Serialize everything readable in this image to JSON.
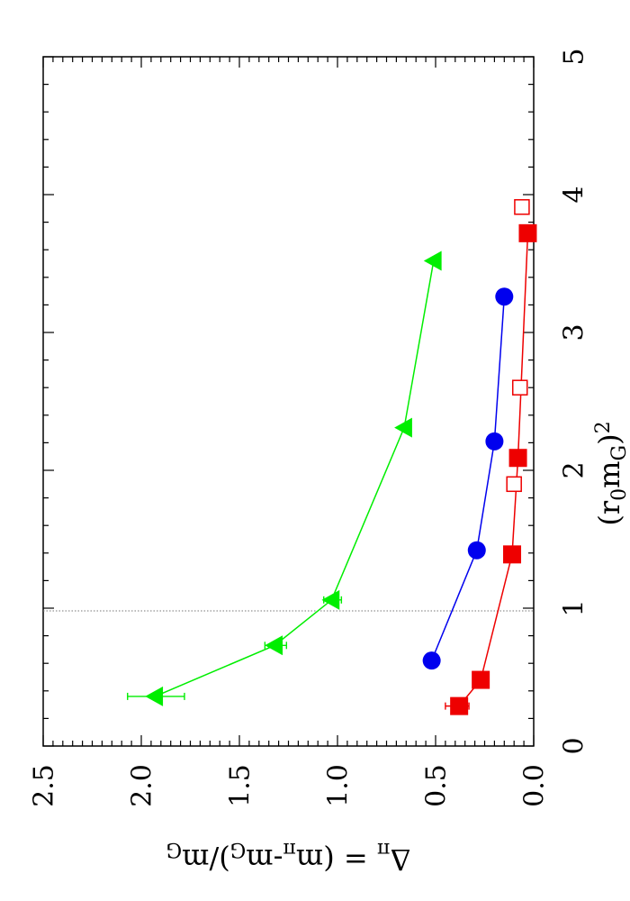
{
  "chart_data": {
    "type": "scatter",
    "orientation_note_text": "",
    "xlabel": "(r0mG)2",
    "xlabel_parts": {
      "base": "(r",
      "sub1": "0",
      "mid": "m",
      "sub2": "G",
      "close": ")",
      "sup": "2"
    },
    "ylabel": "Δπ = (mπ-mG)/mG",
    "ylabel_parts": {
      "delta": "Δ",
      "delta_sub": "π",
      "eq": " = (m",
      "m_sub1": "π",
      "minus": "-m",
      "m_sub2": "G",
      "close": ")/m",
      "m_sub3": "G"
    },
    "xlim": [
      0,
      5
    ],
    "ylim": [
      0.0,
      2.5
    ],
    "x_ticks": [
      "0",
      "1",
      "2",
      "3",
      "4",
      "5"
    ],
    "y_ticks": [
      "0.0",
      "0.5",
      "1.0",
      "1.5",
      "2.0",
      "2.5"
    ],
    "reference_line_x": 0.98,
    "series": [
      {
        "marker": "triangle",
        "color": "#00ee00",
        "connected": true,
        "points": [
          {
            "x": 0.36,
            "y": 1.93,
            "xerr": [
              0.0,
              0.0
            ],
            "yerr": [
              0.15,
              0.14
            ]
          },
          {
            "x": 0.73,
            "y": 1.32,
            "xerr": [
              0,
              0
            ],
            "yerr": [
              0.06,
              0.05
            ]
          },
          {
            "x": 1.06,
            "y": 1.03,
            "xerr": [
              0,
              0
            ],
            "yerr": [
              0.05,
              0.04
            ]
          },
          {
            "x": 2.31,
            "y": 0.66,
            "xerr": [
              0,
              0
            ],
            "yerr": [
              0,
              0
            ]
          },
          {
            "x": 3.52,
            "y": 0.51,
            "xerr": [
              0,
              0
            ],
            "yerr": [
              0,
              0
            ]
          }
        ]
      },
      {
        "marker": "circle",
        "color": "#0000ee",
        "connected": true,
        "points": [
          {
            "x": 0.62,
            "y": 0.52,
            "yerr": [
              0.02,
              0.03
            ]
          },
          {
            "x": 1.42,
            "y": 0.29,
            "yerr": [
              0,
              0
            ]
          },
          {
            "x": 2.21,
            "y": 0.2,
            "yerr": [
              0,
              0
            ]
          },
          {
            "x": 3.26,
            "y": 0.15,
            "yerr": [
              0,
              0
            ]
          }
        ]
      },
      {
        "marker": "square-filled",
        "color": "#ee0000",
        "connected": true,
        "points": [
          {
            "x": 0.29,
            "y": 0.38,
            "yerr": [
              0.05,
              0.07
            ]
          },
          {
            "x": 0.48,
            "y": 0.27,
            "yerr": [
              0,
              0
            ]
          },
          {
            "x": 1.39,
            "y": 0.11,
            "yerr": [
              0,
              0
            ]
          },
          {
            "x": 2.09,
            "y": 0.08,
            "yerr": [
              0,
              0
            ]
          },
          {
            "x": 3.72,
            "y": 0.03,
            "yerr": [
              0,
              0
            ]
          }
        ]
      },
      {
        "marker": "square-open",
        "color": "#ee0000",
        "connected": false,
        "points": [
          {
            "x": 1.9,
            "y": 0.1,
            "yerr": [
              0.01,
              0.01
            ]
          },
          {
            "x": 2.6,
            "y": 0.07,
            "yerr": [
              0.01,
              0.01
            ]
          },
          {
            "x": 3.91,
            "y": 0.06,
            "yerr": [
              0.01,
              0.01
            ]
          }
        ]
      }
    ]
  }
}
